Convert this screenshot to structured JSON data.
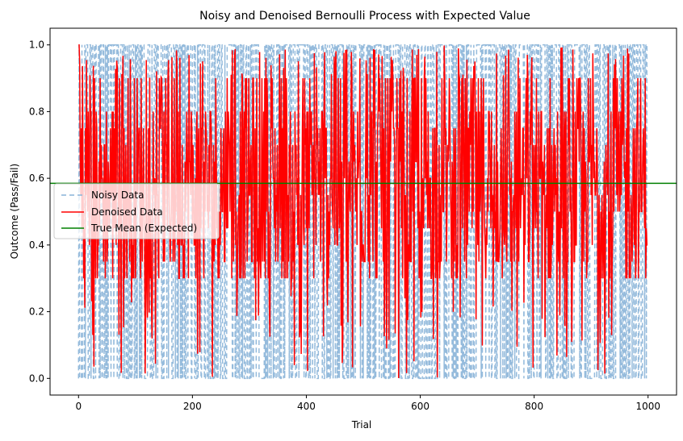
{
  "chart_data": {
    "type": "line",
    "title": "Noisy and Denoised Bernoulli Process with Expected Value",
    "xlabel": "Trial",
    "ylabel": "Outcome (Pass/Fail)",
    "xlim": [
      -50,
      1050
    ],
    "ylim": [
      -0.05,
      1.05
    ],
    "xticks": [
      0,
      200,
      400,
      600,
      800,
      1000
    ],
    "xtick_labels": [
      "0",
      "200",
      "400",
      "600",
      "800",
      "1000"
    ],
    "yticks": [
      0.0,
      0.2,
      0.4,
      0.6,
      0.8,
      1.0
    ],
    "ytick_labels": [
      "0.0",
      "0.2",
      "0.4",
      "0.6",
      "0.8",
      "1.0"
    ],
    "grid": false,
    "legend_position": "center-left",
    "num_trials": 1000,
    "series": [
      {
        "name": "Noisy Data",
        "style": "dashed",
        "color": "#89b4d8",
        "description": "Bernoulli outcomes (0 or 1) for each of 1000 trials"
      },
      {
        "name": "Denoised Data",
        "style": "solid",
        "color": "#ff0000",
        "description": "Smoothed outcomes fluctuating between 0 and 1"
      },
      {
        "name": "True Mean (Expected)",
        "style": "solid",
        "color": "#008000",
        "value": 0.585
      }
    ]
  }
}
